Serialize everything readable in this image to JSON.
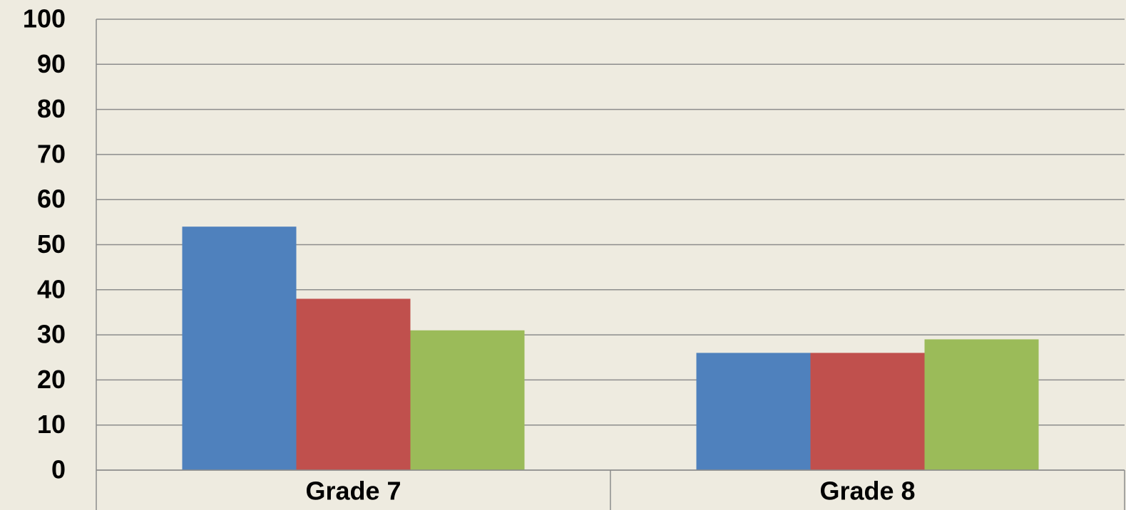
{
  "chart_data": {
    "type": "bar",
    "categories": [
      "Grade 7",
      "Grade 8"
    ],
    "series": [
      {
        "color": "#4f81bd",
        "values": [
          54,
          26
        ]
      },
      {
        "color": "#c0504d",
        "values": [
          38,
          26
        ]
      },
      {
        "color": "#9bbb59",
        "values": [
          31,
          29
        ]
      }
    ],
    "ylim": [
      0,
      100
    ],
    "yticks": [
      0,
      10,
      20,
      30,
      40,
      50,
      60,
      70,
      80,
      90,
      100
    ],
    "grid": true
  }
}
